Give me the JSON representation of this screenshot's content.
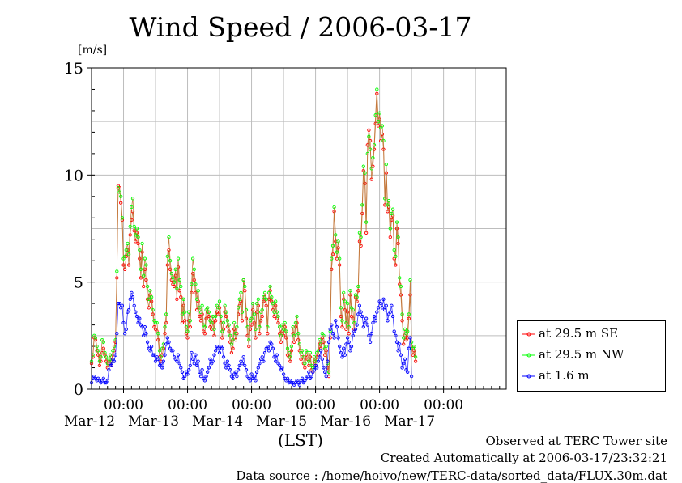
{
  "title": "Wind Speed / 2006-03-17",
  "footer": {
    "observed": "Observed at TERC Tower site",
    "created": "Created Automatically at 2006-03-17/23:32:21",
    "source": "Data source : /home/hoivo/new/TERC-data/sorted_data/FLUX.30m.dat"
  },
  "chart_data": {
    "type": "line",
    "title": "Wind Speed / 2006-03-17",
    "ylabel": "[m/s]",
    "xlabel": "(LST)",
    "ylim": [
      0,
      15
    ],
    "yticks": [
      "0",
      "5",
      "10",
      "15"
    ],
    "xlim": [
      "2006-03-11 12:00",
      "2006-03-17 23:30"
    ],
    "x_ticks": [
      {
        "time": "2006-03-12 00:00",
        "label": "00:00",
        "date": "Mar-12"
      },
      {
        "time": "2006-03-13 00:00",
        "label": "00:00",
        "date": "Mar-13"
      },
      {
        "time": "2006-03-14 00:00",
        "label": "00:00",
        "date": "Mar-14"
      },
      {
        "time": "2006-03-15 00:00",
        "label": "00:00",
        "date": "Mar-15"
      },
      {
        "time": "2006-03-16 00:00",
        "label": "00:00",
        "date": "Mar-16"
      },
      {
        "time": "2006-03-17 00:00",
        "label": "00:00",
        "date": "Mar-17"
      }
    ],
    "grid": true,
    "legend_position": "right",
    "interval": "30 min",
    "series": [
      {
        "name": "at 29.5 m SE",
        "color": "#ff0000",
        "values": [
          1.2,
          1.5,
          2.4,
          2.3,
          1.8,
          1.6,
          1.1,
          1.3,
          1.7,
          1.9,
          1.6,
          1.3,
          1.0,
          1.2,
          1.4,
          1.1,
          1.6,
          1.8,
          2.2,
          5.2,
          9.5,
          9.4,
          8.7,
          7.9,
          5.8,
          5.6,
          6.2,
          6.5,
          5.8,
          7.2,
          7.9,
          8.3,
          7.4,
          6.9,
          7.3,
          6.8,
          6.1,
          5.2,
          6.4,
          4.8,
          5.6,
          5.1,
          4.2,
          3.8,
          4.4,
          4.1,
          3.5,
          2.9,
          2.8,
          2.7,
          2.3,
          1.5,
          1.3,
          1.6,
          1.9,
          2.6,
          3.1,
          5.8,
          6.5,
          5.6,
          5.1,
          4.9,
          4.8,
          5.3,
          4.2,
          5.7,
          4.6,
          4.3,
          3.1,
          3.9,
          3.2,
          2.6,
          2.4,
          3.2,
          2.9,
          4.5,
          5.4,
          5.1,
          4.5,
          3.7,
          4.1,
          3.4,
          3.2,
          3.5,
          2.7,
          2.6,
          3.3,
          3.6,
          3.4,
          2.9,
          2.8,
          3.1,
          2.5,
          3.2,
          3.6,
          3.5,
          3.8,
          3.1,
          2.4,
          2.8,
          3.6,
          3.4,
          2.9,
          2.7,
          2.2,
          1.7,
          1.9,
          2.8,
          2.3,
          2.6,
          3.5,
          3.9,
          4.1,
          3.2,
          5.1,
          4.6,
          3.3,
          2.5,
          2.0,
          2.8,
          3.0,
          3.7,
          3.1,
          2.4,
          3.6,
          3.9,
          2.6,
          3.2,
          3.4,
          4.1,
          4.3,
          3.9,
          2.6,
          4.2,
          4.6,
          4.1,
          3.7,
          3.4,
          3.9,
          3.3,
          3.1,
          2.6,
          2.2,
          2.7,
          2.5,
          2.9,
          2.4,
          1.6,
          1.5,
          1.3,
          1.8,
          2.6,
          2.2,
          2.9,
          3.1,
          2.3,
          1.8,
          1.4,
          1.5,
          1.2,
          1.0,
          1.6,
          1.4,
          1.1,
          1.5,
          0.9,
          0.8,
          1.3,
          1.1,
          1.5,
          1.6,
          2.1,
          1.9,
          2.4,
          2.2,
          1.6,
          1.8,
          1.0,
          0.6,
          2.4,
          5.6,
          6.3,
          8.3,
          6.9,
          6.1,
          6.6,
          5.8,
          3.4,
          2.9,
          4.2,
          3.7,
          2.8,
          3.6,
          2.6,
          4.4,
          3.4,
          3.3,
          2.8,
          4.3,
          4.1,
          4.6,
          6.9,
          6.7,
          8.2,
          10.2,
          9.6,
          7.3,
          11.4,
          12.1,
          11.6,
          9.8,
          10.4,
          11.2,
          12.4,
          13.8,
          12.3,
          12.6,
          11.6,
          11.9,
          11.2,
          8.6,
          10.1,
          8.3,
          8.5,
          7.1,
          7.9,
          8.1,
          6.1,
          5.8,
          7.5,
          6.8,
          4.9,
          4.4,
          3.2,
          2.1,
          2.5,
          2.3,
          2.4,
          3.3,
          4.4,
          1.9,
          1.6,
          1.8,
          1.3
        ]
      },
      {
        "name": "at 29.5 m NW",
        "color": "#00ff00",
        "values": [
          1.3,
          1.6,
          2.5,
          2.4,
          2.0,
          1.8,
          1.3,
          1.5,
          2.3,
          2.2,
          1.7,
          1.5,
          1.2,
          1.4,
          1.6,
          1.3,
          1.8,
          2.0,
          2.3,
          5.5,
          9.4,
          9.2,
          9.0,
          8.0,
          6.1,
          6.2,
          6.5,
          6.8,
          6.3,
          7.6,
          8.5,
          8.9,
          7.6,
          7.2,
          7.5,
          7.1,
          6.5,
          5.6,
          6.8,
          5.3,
          6.1,
          5.8,
          4.8,
          4.2,
          4.6,
          4.3,
          3.7,
          3.2,
          3.1,
          3.1,
          2.6,
          1.8,
          1.5,
          1.9,
          2.1,
          2.9,
          3.5,
          6.2,
          7.1,
          6.0,
          5.4,
          5.2,
          5.0,
          5.6,
          4.7,
          6.1,
          5.1,
          4.8,
          3.5,
          4.2,
          3.6,
          2.9,
          2.7,
          3.6,
          3.2,
          4.9,
          6.1,
          5.6,
          4.9,
          4.2,
          4.6,
          3.8,
          3.6,
          3.9,
          3.0,
          2.9,
          3.7,
          3.8,
          3.6,
          3.2,
          3.1,
          3.4,
          2.8,
          3.4,
          3.9,
          3.8,
          4.1,
          3.4,
          2.7,
          3.1,
          3.9,
          3.6,
          3.2,
          3.0,
          2.5,
          2.1,
          2.3,
          3.1,
          2.6,
          2.9,
          3.8,
          4.2,
          4.5,
          3.6,
          5.1,
          4.8,
          3.7,
          2.9,
          2.3,
          3.2,
          3.3,
          4.0,
          3.5,
          2.8,
          4.0,
          4.2,
          2.9,
          3.6,
          3.7,
          4.3,
          4.5,
          4.2,
          2.9,
          4.5,
          4.8,
          4.3,
          4.0,
          3.6,
          4.1,
          3.6,
          3.4,
          2.9,
          2.5,
          3.0,
          2.8,
          3.1,
          2.7,
          1.9,
          1.7,
          1.5,
          2.0,
          2.9,
          2.5,
          3.1,
          3.4,
          2.6,
          2.1,
          1.7,
          1.8,
          1.5,
          1.2,
          1.8,
          1.7,
          1.3,
          1.7,
          1.1,
          1.0,
          1.5,
          1.3,
          1.7,
          1.8,
          2.3,
          2.1,
          2.6,
          2.5,
          1.9,
          2.0,
          1.2,
          0.8,
          2.7,
          6.1,
          6.7,
          8.5,
          7.2,
          6.4,
          6.9,
          6.1,
          3.8,
          3.2,
          4.5,
          4.1,
          3.1,
          4.0,
          2.9,
          4.6,
          3.8,
          3.7,
          3.1,
          4.4,
          4.3,
          4.8,
          7.3,
          7.1,
          8.6,
          10.4,
          10.1,
          7.8,
          11.0,
          11.8,
          11.2,
          10.3,
          10.8,
          11.4,
          12.8,
          14.0,
          12.5,
          12.9,
          12.2,
          12.3,
          11.6,
          8.9,
          10.5,
          8.6,
          8.8,
          7.5,
          8.2,
          8.4,
          6.5,
          6.2,
          7.8,
          7.1,
          5.2,
          4.8,
          3.5,
          2.4,
          2.8,
          2.6,
          2.7,
          3.5,
          5.1,
          2.2,
          1.9,
          2.0,
          1.5
        ]
      },
      {
        "name": "at 1.6 m",
        "color": "#0000ff",
        "values": [
          0.3,
          0.5,
          0.6,
          0.5,
          0.4,
          0.5,
          0.4,
          0.3,
          0.4,
          0.5,
          0.3,
          0.3,
          0.4,
          0.9,
          1.2,
          1.1,
          1.4,
          1.3,
          1.6,
          2.6,
          4.0,
          4.0,
          3.8,
          3.9,
          3.1,
          2.6,
          2.8,
          3.6,
          3.7,
          4.2,
          4.5,
          4.3,
          3.9,
          3.6,
          3.4,
          3.1,
          3.3,
          3.0,
          2.9,
          2.5,
          2.9,
          2.6,
          2.2,
          1.9,
          1.8,
          2.0,
          1.6,
          1.6,
          1.3,
          1.5,
          1.4,
          1.1,
          1.2,
          1.0,
          1.3,
          1.6,
          2.1,
          2.4,
          2.2,
          1.9,
          1.8,
          1.8,
          1.5,
          1.4,
          1.3,
          1.6,
          1.2,
          1.0,
          0.8,
          0.5,
          0.6,
          0.8,
          0.7,
          0.9,
          1.1,
          1.7,
          1.4,
          1.2,
          1.6,
          1.1,
          1.3,
          0.8,
          0.6,
          0.9,
          0.5,
          0.4,
          0.6,
          0.8,
          1.0,
          1.4,
          1.2,
          1.3,
          1.6,
          1.8,
          2.0,
          1.9,
          1.7,
          2.0,
          1.9,
          1.5,
          1.2,
          1.0,
          1.3,
          1.1,
          0.9,
          0.6,
          0.5,
          0.7,
          0.8,
          0.6,
          0.9,
          1.1,
          1.3,
          1.2,
          1.5,
          1.1,
          0.9,
          0.6,
          0.5,
          0.4,
          0.7,
          0.5,
          0.6,
          0.4,
          0.8,
          1.0,
          1.2,
          1.4,
          1.5,
          1.3,
          1.7,
          1.9,
          2.0,
          1.8,
          2.2,
          2.1,
          1.9,
          1.5,
          1.3,
          1.6,
          1.2,
          1.1,
          0.9,
          1.0,
          0.7,
          0.5,
          0.4,
          0.5,
          0.3,
          0.4,
          0.3,
          0.3,
          0.2,
          0.3,
          0.4,
          0.3,
          0.2,
          0.4,
          0.5,
          0.3,
          0.4,
          0.5,
          0.6,
          0.8,
          0.5,
          0.6,
          0.8,
          0.9,
          1.1,
          1.0,
          1.3,
          1.5,
          1.8,
          1.4,
          1.0,
          0.8,
          0.6,
          1.3,
          2.2,
          2.8,
          3.0,
          2.6,
          2.4,
          3.2,
          2.9,
          2.4,
          2.0,
          1.7,
          1.5,
          1.9,
          1.6,
          2.1,
          2.4,
          2.2,
          1.8,
          2.0,
          2.5,
          2.7,
          2.8,
          3.0,
          3.5,
          3.9,
          3.6,
          3.4,
          2.9,
          3.1,
          3.3,
          3.0,
          2.5,
          2.2,
          2.6,
          3.1,
          3.4,
          3.2,
          3.6,
          3.8,
          4.1,
          4.0,
          3.8,
          4.2,
          3.7,
          3.9,
          3.2,
          3.5,
          3.6,
          3.9,
          3.4,
          2.7,
          2.5,
          2.2,
          1.8,
          2.1,
          1.6,
          1.0,
          1.2,
          1.4,
          0.9,
          0.8,
          1.9,
          2.4,
          0.6
        ]
      }
    ]
  }
}
